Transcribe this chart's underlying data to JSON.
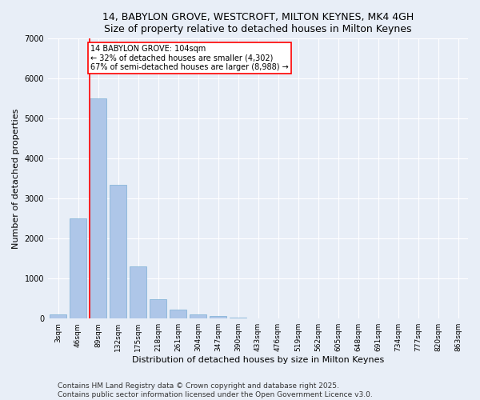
{
  "title_line1": "14, BABYLON GROVE, WESTCROFT, MILTON KEYNES, MK4 4GH",
  "title_line2": "Size of property relative to detached houses in Milton Keynes",
  "xlabel": "Distribution of detached houses by size in Milton Keynes",
  "ylabel": "Number of detached properties",
  "categories": [
    "3sqm",
    "46sqm",
    "89sqm",
    "132sqm",
    "175sqm",
    "218sqm",
    "261sqm",
    "304sqm",
    "347sqm",
    "390sqm",
    "433sqm",
    "476sqm",
    "519sqm",
    "562sqm",
    "605sqm",
    "648sqm",
    "691sqm",
    "734sqm",
    "777sqm",
    "820sqm",
    "863sqm"
  ],
  "values": [
    100,
    2500,
    5500,
    3350,
    1300,
    480,
    220,
    100,
    55,
    30,
    0,
    0,
    0,
    0,
    0,
    0,
    0,
    0,
    0,
    0,
    0
  ],
  "bar_color": "#aec6e8",
  "bar_edge_color": "#7aafd4",
  "vline_x_idx": 2,
  "vline_color": "red",
  "annotation_text": "14 BABYLON GROVE: 104sqm\n← 32% of detached houses are smaller (4,302)\n67% of semi-detached houses are larger (8,988) →",
  "annotation_box_color": "white",
  "annotation_box_edge": "red",
  "ylim": [
    0,
    7000
  ],
  "yticks": [
    0,
    1000,
    2000,
    3000,
    4000,
    5000,
    6000,
    7000
  ],
  "bg_color": "#e8eef7",
  "grid_color": "white",
  "footer_line1": "Contains HM Land Registry data © Crown copyright and database right 2025.",
  "footer_line2": "Contains public sector information licensed under the Open Government Licence v3.0.",
  "title_fontsize": 9,
  "axis_label_fontsize": 8,
  "tick_label_fontsize": 6.5,
  "annotation_fontsize": 7,
  "footer_fontsize": 6.5
}
